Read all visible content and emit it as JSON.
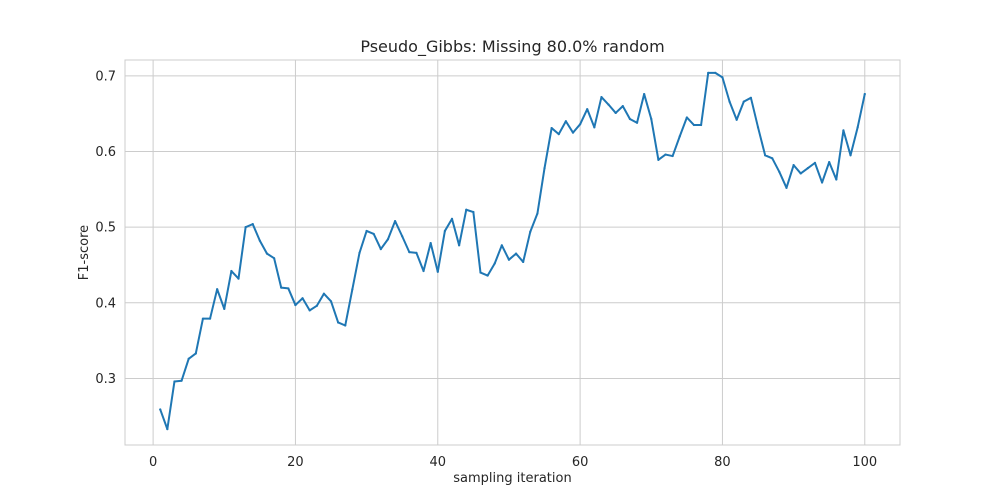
{
  "chart_data": {
    "type": "line",
    "title": "Pseudo_Gibbs: Missing 80.0% random",
    "xlabel": "sampling iteration",
    "ylabel": "F1-score",
    "xlim": [
      -3.95,
      104.95
    ],
    "ylim": [
      0.212,
      0.721
    ],
    "x_ticks": [
      0,
      20,
      40,
      60,
      80,
      100
    ],
    "y_ticks": [
      0.3,
      0.4,
      0.5,
      0.6,
      0.7
    ],
    "x_tick_labels": [
      "0",
      "20",
      "40",
      "60",
      "80",
      "100"
    ],
    "y_tick_labels": [
      "0.3",
      "0.4",
      "0.5",
      "0.6",
      "0.7"
    ],
    "grid": true,
    "colors": {
      "line": "#1f77b4",
      "grid": "#cccccc",
      "frame": "#cccccc",
      "text": "#262626"
    },
    "series": [
      {
        "x": [
          1,
          2,
          3,
          4,
          5,
          6,
          7,
          8,
          9,
          10,
          11,
          12,
          13,
          14,
          15,
          16,
          17,
          18,
          19,
          20,
          21,
          22,
          23,
          24,
          25,
          26,
          27,
          28,
          29,
          30,
          31,
          32,
          33,
          34,
          35,
          36,
          37,
          38,
          39,
          40,
          41,
          42,
          43,
          44,
          45,
          46,
          47,
          48,
          49,
          50,
          51,
          52,
          53,
          54,
          55,
          56,
          57,
          58,
          59,
          60,
          61,
          62,
          63,
          64,
          65,
          66,
          67,
          68,
          69,
          70,
          71,
          72,
          73,
          74,
          75,
          76,
          77,
          78,
          79,
          80,
          81,
          82,
          83,
          84,
          85,
          86,
          87,
          88,
          89,
          90,
          91,
          92,
          93,
          94,
          95,
          96,
          97,
          98,
          99,
          100
        ],
        "values": [
          0.259,
          0.233,
          0.296,
          0.297,
          0.326,
          0.333,
          0.379,
          0.379,
          0.418,
          0.392,
          0.442,
          0.432,
          0.5,
          0.504,
          0.482,
          0.465,
          0.459,
          0.42,
          0.419,
          0.397,
          0.406,
          0.39,
          0.396,
          0.412,
          0.402,
          0.374,
          0.37,
          0.418,
          0.466,
          0.495,
          0.491,
          0.471,
          0.484,
          0.508,
          0.488,
          0.467,
          0.466,
          0.442,
          0.479,
          0.441,
          0.495,
          0.511,
          0.476,
          0.523,
          0.52,
          0.44,
          0.436,
          0.452,
          0.476,
          0.457,
          0.465,
          0.454,
          0.494,
          0.518,
          0.578,
          0.631,
          0.623,
          0.64,
          0.625,
          0.636,
          0.656,
          0.632,
          0.672,
          0.662,
          0.651,
          0.66,
          0.643,
          0.638,
          0.676,
          0.643,
          0.589,
          0.596,
          0.594,
          0.62,
          0.645,
          0.635,
          0.635,
          0.704,
          0.704,
          0.698,
          0.666,
          0.642,
          0.666,
          0.671,
          0.632,
          0.595,
          0.591,
          0.573,
          0.552,
          0.582,
          0.571,
          0.578,
          0.585,
          0.559,
          0.586,
          0.563,
          0.628,
          0.595,
          0.632,
          0.676
        ]
      }
    ]
  }
}
